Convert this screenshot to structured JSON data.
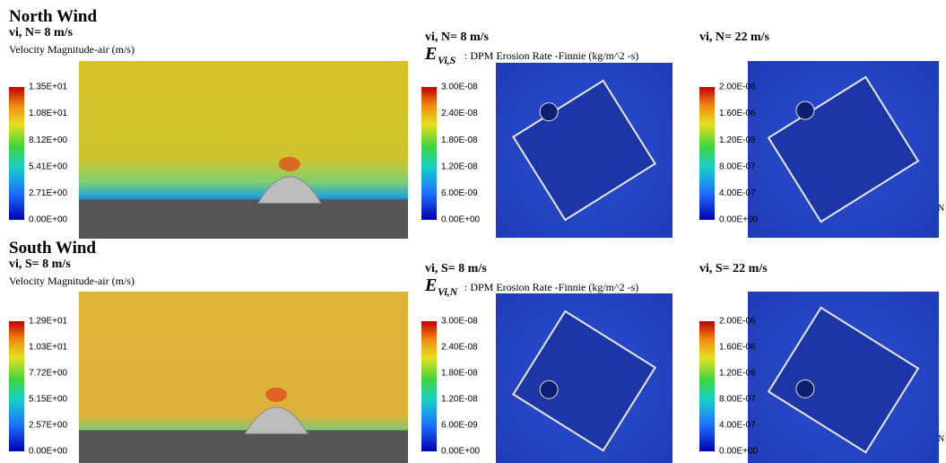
{
  "rows": [
    {
      "heading": "North Wind",
      "panels": [
        {
          "title": "vi, N= 8 m/s",
          "colorbar_title": "Velocity Magnitude-air (m/s)",
          "colorbar_ticks": [
            "1.35E+01",
            "1.08E+01",
            "8.12E+00",
            "5.41E+00",
            "2.71E+00",
            "0.00E+00"
          ]
        },
        {
          "title": "vi, N= 8 m/s",
          "symbol": "E",
          "symbol_sub": "Vi,S",
          "colorbar_title": ": DPM Erosion Rate -Finnie (kg/m^2 -s)",
          "colorbar_ticks": [
            "3.00E-08",
            "2.40E-08",
            "1.80E-08",
            "1.20E-08",
            "6.00E-09",
            "0.00E+00"
          ]
        },
        {
          "title": "vi, N= 22 m/s",
          "colorbar_ticks": [
            "2.00E-06",
            "1.60E-06",
            "1.20E-06",
            "8.00E-07",
            "4.00E-07",
            "0.00E+00"
          ],
          "compass": "N"
        }
      ]
    },
    {
      "heading": "South Wind",
      "panels": [
        {
          "title": "vi, S= 8 m/s",
          "colorbar_title": "Velocity Magnitude-air (m/s)",
          "colorbar_ticks": [
            "1.29E+01",
            "1.03E+01",
            "7.72E+00",
            "5.15E+00",
            "2.57E+00",
            "0.00E+00"
          ]
        },
        {
          "title": "vi, S= 8 m/s",
          "symbol": "E",
          "symbol_sub": "Vi,N",
          "colorbar_title": ": DPM Erosion Rate -Finnie (kg/m^2 -s)",
          "colorbar_ticks": [
            "3.00E-08",
            "2.40E-08",
            "1.80E-08",
            "1.20E-08",
            "6.00E-09",
            "0.00E+00"
          ]
        },
        {
          "title": "vi, S= 22 m/s",
          "colorbar_ticks": [
            "2.00E-06",
            "1.60E-06",
            "1.20E-06",
            "8.00E-07",
            "4.00E-07",
            "0.00E+00"
          ],
          "compass": "N"
        }
      ]
    }
  ]
}
